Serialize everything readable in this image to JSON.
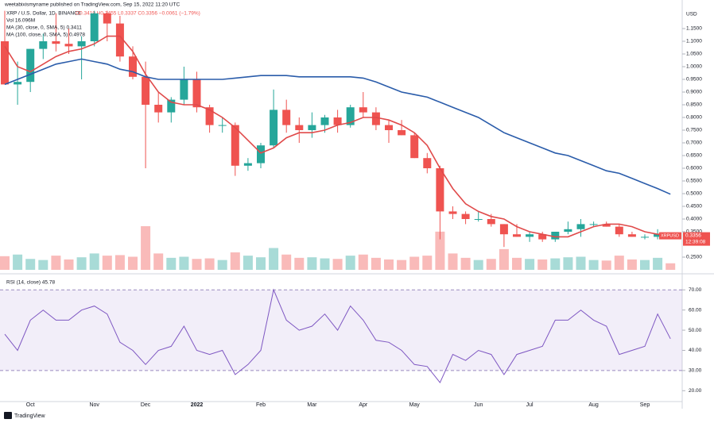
{
  "header": {
    "published": "weetabixismyname published on TradingView.com, Sep 15, 2022 11:20 UTC",
    "symbol": "XRP / U.S. Dollar, 1D, BINANCE",
    "ohlc": "O0.3419 H0.3455 L0.3337 C0.3356 −0.0061 (−1.79%)",
    "volume": "Vol 16.096M",
    "currency": "USD",
    "symbol_tag": "XRPUSD",
    "countdown": "12:39:08",
    "footer": "TradingView"
  },
  "chart_data": [
    {
      "type": "candlestick",
      "categories": [
        null,
        null,
        "Oct",
        null,
        null,
        null,
        null,
        "Nov",
        null,
        null,
        null,
        "Dec",
        null,
        null,
        null,
        "2022",
        null,
        null,
        null,
        null,
        "Feb",
        null,
        null,
        null,
        "Mar",
        null,
        null,
        null,
        "Apr",
        null,
        null,
        null,
        "May",
        null,
        null,
        null,
        null,
        "Jun",
        null,
        null,
        null,
        "Jul",
        null,
        null,
        null,
        null,
        "Aug",
        null,
        null,
        null,
        "Sep",
        null,
        null
      ],
      "open": [
        1.1,
        0.93,
        0.94,
        1.07,
        1.1,
        1.09,
        1.08,
        1.1,
        1.21,
        1.17,
        1.04,
        0.96,
        0.85,
        0.82,
        0.87,
        0.95,
        0.84,
        0.77,
        0.77,
        0.61,
        0.62,
        0.69,
        0.83,
        0.77,
        0.75,
        0.77,
        0.8,
        0.77,
        0.84,
        0.82,
        0.77,
        0.75,
        0.73,
        0.64,
        0.6,
        0.43,
        0.42,
        0.4,
        0.4,
        0.38,
        0.34,
        0.33,
        0.34,
        0.32,
        0.35,
        0.36,
        0.38,
        0.38,
        0.37,
        0.34,
        0.33,
        0.33,
        0.3419
      ],
      "high": [
        1.22,
        1.02,
        1.07,
        1.13,
        1.21,
        1.15,
        1.12,
        1.22,
        1.22,
        1.2,
        1.08,
        1.02,
        0.9,
        0.88,
        1.0,
        0.98,
        0.85,
        0.8,
        0.78,
        0.64,
        0.7,
        0.91,
        0.87,
        0.8,
        0.82,
        0.81,
        0.83,
        0.85,
        0.9,
        0.84,
        0.79,
        0.79,
        0.74,
        0.66,
        0.61,
        0.45,
        0.43,
        0.43,
        0.42,
        0.38,
        0.38,
        0.35,
        0.35,
        0.35,
        0.39,
        0.4,
        0.39,
        0.39,
        0.38,
        0.35,
        0.34,
        0.36,
        0.3455
      ],
      "low": [
        0.93,
        0.85,
        0.9,
        1.03,
        1.06,
        1.05,
        0.95,
        1.08,
        1.1,
        1.02,
        0.95,
        0.6,
        0.78,
        0.78,
        0.85,
        0.82,
        0.74,
        0.74,
        0.57,
        0.59,
        0.6,
        0.68,
        0.74,
        0.7,
        0.72,
        0.74,
        0.74,
        0.76,
        0.8,
        0.75,
        0.7,
        0.73,
        0.64,
        0.58,
        0.32,
        0.4,
        0.38,
        0.39,
        0.37,
        0.29,
        0.33,
        0.31,
        0.31,
        0.31,
        0.34,
        0.33,
        0.37,
        0.37,
        0.33,
        0.33,
        0.32,
        0.32,
        0.3337
      ],
      "close": [
        0.93,
        0.94,
        1.07,
        1.1,
        1.09,
        1.08,
        1.1,
        1.21,
        1.17,
        1.04,
        0.96,
        0.85,
        0.82,
        0.87,
        0.95,
        0.84,
        0.77,
        0.77,
        0.61,
        0.62,
        0.69,
        0.83,
        0.77,
        0.75,
        0.77,
        0.8,
        0.77,
        0.84,
        0.82,
        0.77,
        0.75,
        0.73,
        0.64,
        0.6,
        0.43,
        0.42,
        0.4,
        0.4,
        0.38,
        0.34,
        0.33,
        0.34,
        0.32,
        0.35,
        0.36,
        0.38,
        0.38,
        0.37,
        0.34,
        0.33,
        0.33,
        0.3419,
        0.3356
      ],
      "volume": [
        250,
        280,
        200,
        180,
        260,
        190,
        230,
        300,
        260,
        270,
        240,
        800,
        300,
        220,
        240,
        200,
        210,
        180,
        320,
        260,
        230,
        400,
        280,
        220,
        230,
        210,
        200,
        260,
        280,
        220,
        190,
        180,
        240,
        260,
        700,
        300,
        220,
        180,
        200,
        380,
        220,
        200,
        190,
        210,
        230,
        240,
        180,
        170,
        260,
        190,
        180,
        220,
        120
      ],
      "up_color": "#26a69a",
      "down_color": "#ef5350",
      "series": [
        {
          "name": "MA (30, close, 0, SMA, 5) 0.3411",
          "color": "#e04a4a",
          "values": [
            1.08,
            1.0,
            0.98,
            1.01,
            1.04,
            1.06,
            1.07,
            1.09,
            1.12,
            1.12,
            1.06,
            0.97,
            0.9,
            0.86,
            0.85,
            0.85,
            0.83,
            0.8,
            0.76,
            0.71,
            0.66,
            0.68,
            0.72,
            0.74,
            0.74,
            0.75,
            0.77,
            0.78,
            0.8,
            0.8,
            0.79,
            0.77,
            0.74,
            0.69,
            0.6,
            0.52,
            0.46,
            0.43,
            0.41,
            0.4,
            0.37,
            0.35,
            0.34,
            0.33,
            0.33,
            0.35,
            0.37,
            0.38,
            0.38,
            0.37,
            0.35,
            0.34,
            0.3411
          ]
        },
        {
          "name": "MA (100, close, 0, SMA, 5) 0.4978",
          "color": "#2a5caa",
          "values": [
            0.93,
            0.95,
            0.97,
            0.99,
            1.01,
            1.02,
            1.03,
            1.02,
            1.01,
            0.99,
            0.98,
            0.96,
            0.95,
            0.95,
            0.95,
            0.95,
            0.95,
            0.95,
            0.955,
            0.96,
            0.965,
            0.965,
            0.965,
            0.96,
            0.96,
            0.96,
            0.96,
            0.96,
            0.955,
            0.94,
            0.92,
            0.9,
            0.89,
            0.88,
            0.86,
            0.84,
            0.82,
            0.8,
            0.77,
            0.74,
            0.72,
            0.7,
            0.68,
            0.66,
            0.65,
            0.63,
            0.61,
            0.59,
            0.58,
            0.56,
            0.54,
            0.52,
            0.4978
          ]
        }
      ],
      "ylim": [
        0.2,
        1.225
      ],
      "yticks": [
        {
          "value": 0.25,
          "label": "0.2500"
        },
        {
          "value": 0.35,
          "label": "0.3500"
        },
        {
          "value": 0.4,
          "label": "0.4000"
        },
        {
          "value": 0.45,
          "label": "0.4500"
        },
        {
          "value": 0.5,
          "label": "0.5000"
        },
        {
          "value": 0.55,
          "label": "0.5500"
        },
        {
          "value": 0.6,
          "label": "0.6000"
        },
        {
          "value": 0.65,
          "label": "0.6500"
        },
        {
          "value": 0.7,
          "label": "0.7000"
        },
        {
          "value": 0.75,
          "label": "0.7500"
        },
        {
          "value": 0.8,
          "label": "0.8000"
        },
        {
          "value": 0.85,
          "label": "0.8500"
        },
        {
          "value": 0.9,
          "label": "0.9000"
        },
        {
          "value": 0.95,
          "label": "0.9500"
        },
        {
          "value": 1.0,
          "label": "1.0000"
        },
        {
          "value": 1.05,
          "label": "1.0500"
        },
        {
          "value": 1.1,
          "label": "1.1000"
        },
        {
          "value": 1.15,
          "label": "1.1500"
        }
      ]
    },
    {
      "type": "line",
      "title": "RSI (14, close) 45.78",
      "color": "#7e57c2",
      "values": [
        48,
        40,
        55,
        60,
        55,
        55,
        60,
        62,
        58,
        44,
        40,
        33,
        40,
        42,
        52,
        40,
        38,
        40,
        28,
        33,
        40,
        70,
        55,
        50,
        52,
        58,
        50,
        62,
        55,
        45,
        44,
        40,
        33,
        32,
        24,
        38,
        35,
        40,
        38,
        28,
        38,
        40,
        42,
        55,
        55,
        60,
        55,
        52,
        38,
        40,
        42,
        58,
        45.78
      ],
      "band": [
        30,
        70
      ],
      "ylim": [
        15,
        76
      ],
      "yticks": [
        {
          "value": 20,
          "label": "20.00"
        },
        {
          "value": 30,
          "label": "30.00"
        },
        {
          "value": 40,
          "label": "40.00"
        },
        {
          "value": 50,
          "label": "50.00"
        },
        {
          "value": 60,
          "label": "60.00"
        },
        {
          "value": 70,
          "label": "70.00"
        }
      ]
    }
  ]
}
